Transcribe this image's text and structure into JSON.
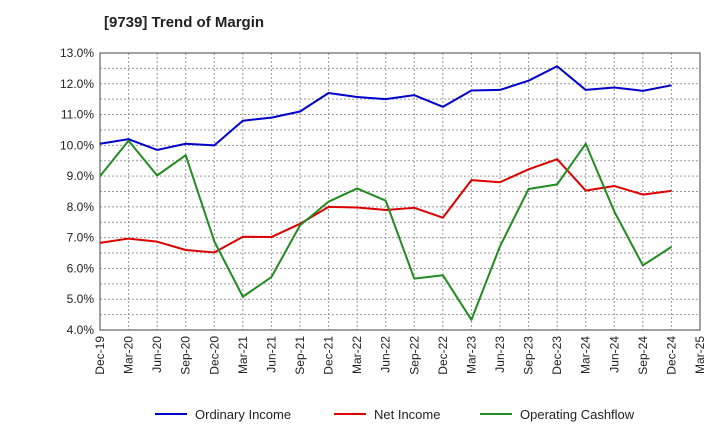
{
  "chart_data": {
    "type": "line",
    "title": "[9739]  Trend of Margin",
    "xlabel": "",
    "ylabel": "",
    "x": [
      "Dec-19",
      "Mar-20",
      "Jun-20",
      "Sep-20",
      "Dec-20",
      "Mar-21",
      "Jun-21",
      "Sep-21",
      "Dec-21",
      "Mar-22",
      "Jun-22",
      "Sep-22",
      "Dec-22",
      "Mar-23",
      "Jun-23",
      "Sep-23",
      "Dec-23",
      "Mar-24",
      "Jun-24",
      "Sep-24",
      "Dec-24",
      "Mar-25"
    ],
    "y_ticks": [
      "4.0%",
      "5.0%",
      "6.0%",
      "7.0%",
      "8.0%",
      "9.0%",
      "10.0%",
      "11.0%",
      "12.0%",
      "13.0%"
    ],
    "ylim": [
      4.0,
      13.0
    ],
    "grid": true,
    "legend_position": "bottom",
    "series": [
      {
        "name": "Ordinary Income",
        "color": "#0000cc",
        "values": [
          10.05,
          10.2,
          9.85,
          10.05,
          10.0,
          10.8,
          10.9,
          11.1,
          11.7,
          11.57,
          11.5,
          11.63,
          11.25,
          11.78,
          11.8,
          12.1,
          12.57,
          11.8,
          11.88,
          11.77,
          11.95,
          null
        ]
      },
      {
        "name": "Net Income",
        "color": "#dd0000",
        "values": [
          6.83,
          6.97,
          6.87,
          6.6,
          6.52,
          7.03,
          7.02,
          7.45,
          8.0,
          7.98,
          7.9,
          7.97,
          7.65,
          8.87,
          8.8,
          9.22,
          9.55,
          8.53,
          8.68,
          8.4,
          8.52,
          null
        ]
      },
      {
        "name": "Operating Cashflow",
        "color": "#228b22",
        "values": [
          9.0,
          10.15,
          9.02,
          9.68,
          6.88,
          5.08,
          5.72,
          7.4,
          8.17,
          8.6,
          8.2,
          5.67,
          5.78,
          4.33,
          6.72,
          8.58,
          8.73,
          10.05,
          7.85,
          6.1,
          6.7,
          null
        ]
      }
    ]
  }
}
